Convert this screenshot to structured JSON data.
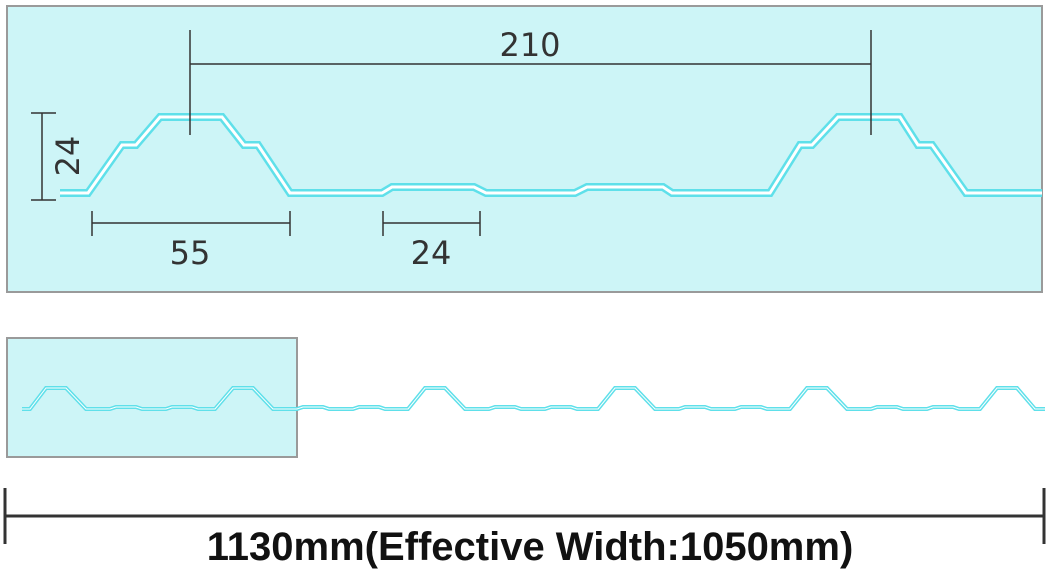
{
  "colors": {
    "panel_fill": "#cdf5f7",
    "panel_border": "#9a9a9a",
    "profile_stroke": "#5fe0ea",
    "profile_inner": "#ffffff",
    "dimension_line": "#333333",
    "caption": "#111111"
  },
  "detail": {
    "dim_pitch": "210",
    "dim_height": "24",
    "dim_rib_base": "55",
    "dim_minor_rib": "24"
  },
  "caption": "1130mm(Effective Width:1050mm)"
}
